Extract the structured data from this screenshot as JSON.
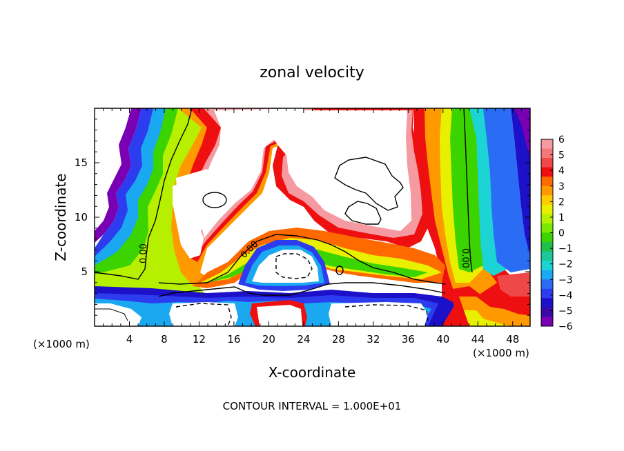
{
  "chart_data": {
    "type": "heatmap",
    "title": "zonal velocity",
    "xlabel": "X-coordinate",
    "ylabel": "Z-coordinate",
    "x_unit_left": "(×1000 m)",
    "x_unit_right": "(×1000 m)",
    "xlim": [
      0,
      50
    ],
    "ylim": [
      0,
      20
    ],
    "x_ticks": [
      4,
      8,
      12,
      16,
      20,
      24,
      28,
      32,
      36,
      40,
      44,
      48
    ],
    "y_ticks": [
      5,
      10,
      15
    ],
    "colorbar": {
      "ticks": [
        6,
        5,
        4,
        3,
        2,
        1,
        0,
        -1,
        -2,
        -3,
        -4,
        -5,
        -6
      ],
      "tick_labels": [
        "6",
        "5",
        "4",
        "3",
        "2",
        "1",
        "0",
        "−1",
        "−2",
        "−3",
        "−4",
        "−5",
        "−6"
      ],
      "colors": [
        "#f59aa0",
        "#f57878",
        "#f04848",
        "#ee1010",
        "#ff6a00",
        "#ff9900",
        "#ffcc00",
        "#e8f000",
        "#b6f000",
        "#7ae800",
        "#3bd400",
        "#22c04a",
        "#1dc89a",
        "#1cd4d4",
        "#1aa8f0",
        "#2b6cf5",
        "#2e3cf0",
        "#1c10c8",
        "#3a0aa8",
        "#7a00b4"
      ],
      "range": [
        -6,
        6
      ]
    },
    "contour_labels": [
      "0.00",
      "0.00",
      "0.00"
    ],
    "footer": "CONTOUR INTERVAL = 1.000E+01",
    "clipped_color": "#ffffff"
  }
}
